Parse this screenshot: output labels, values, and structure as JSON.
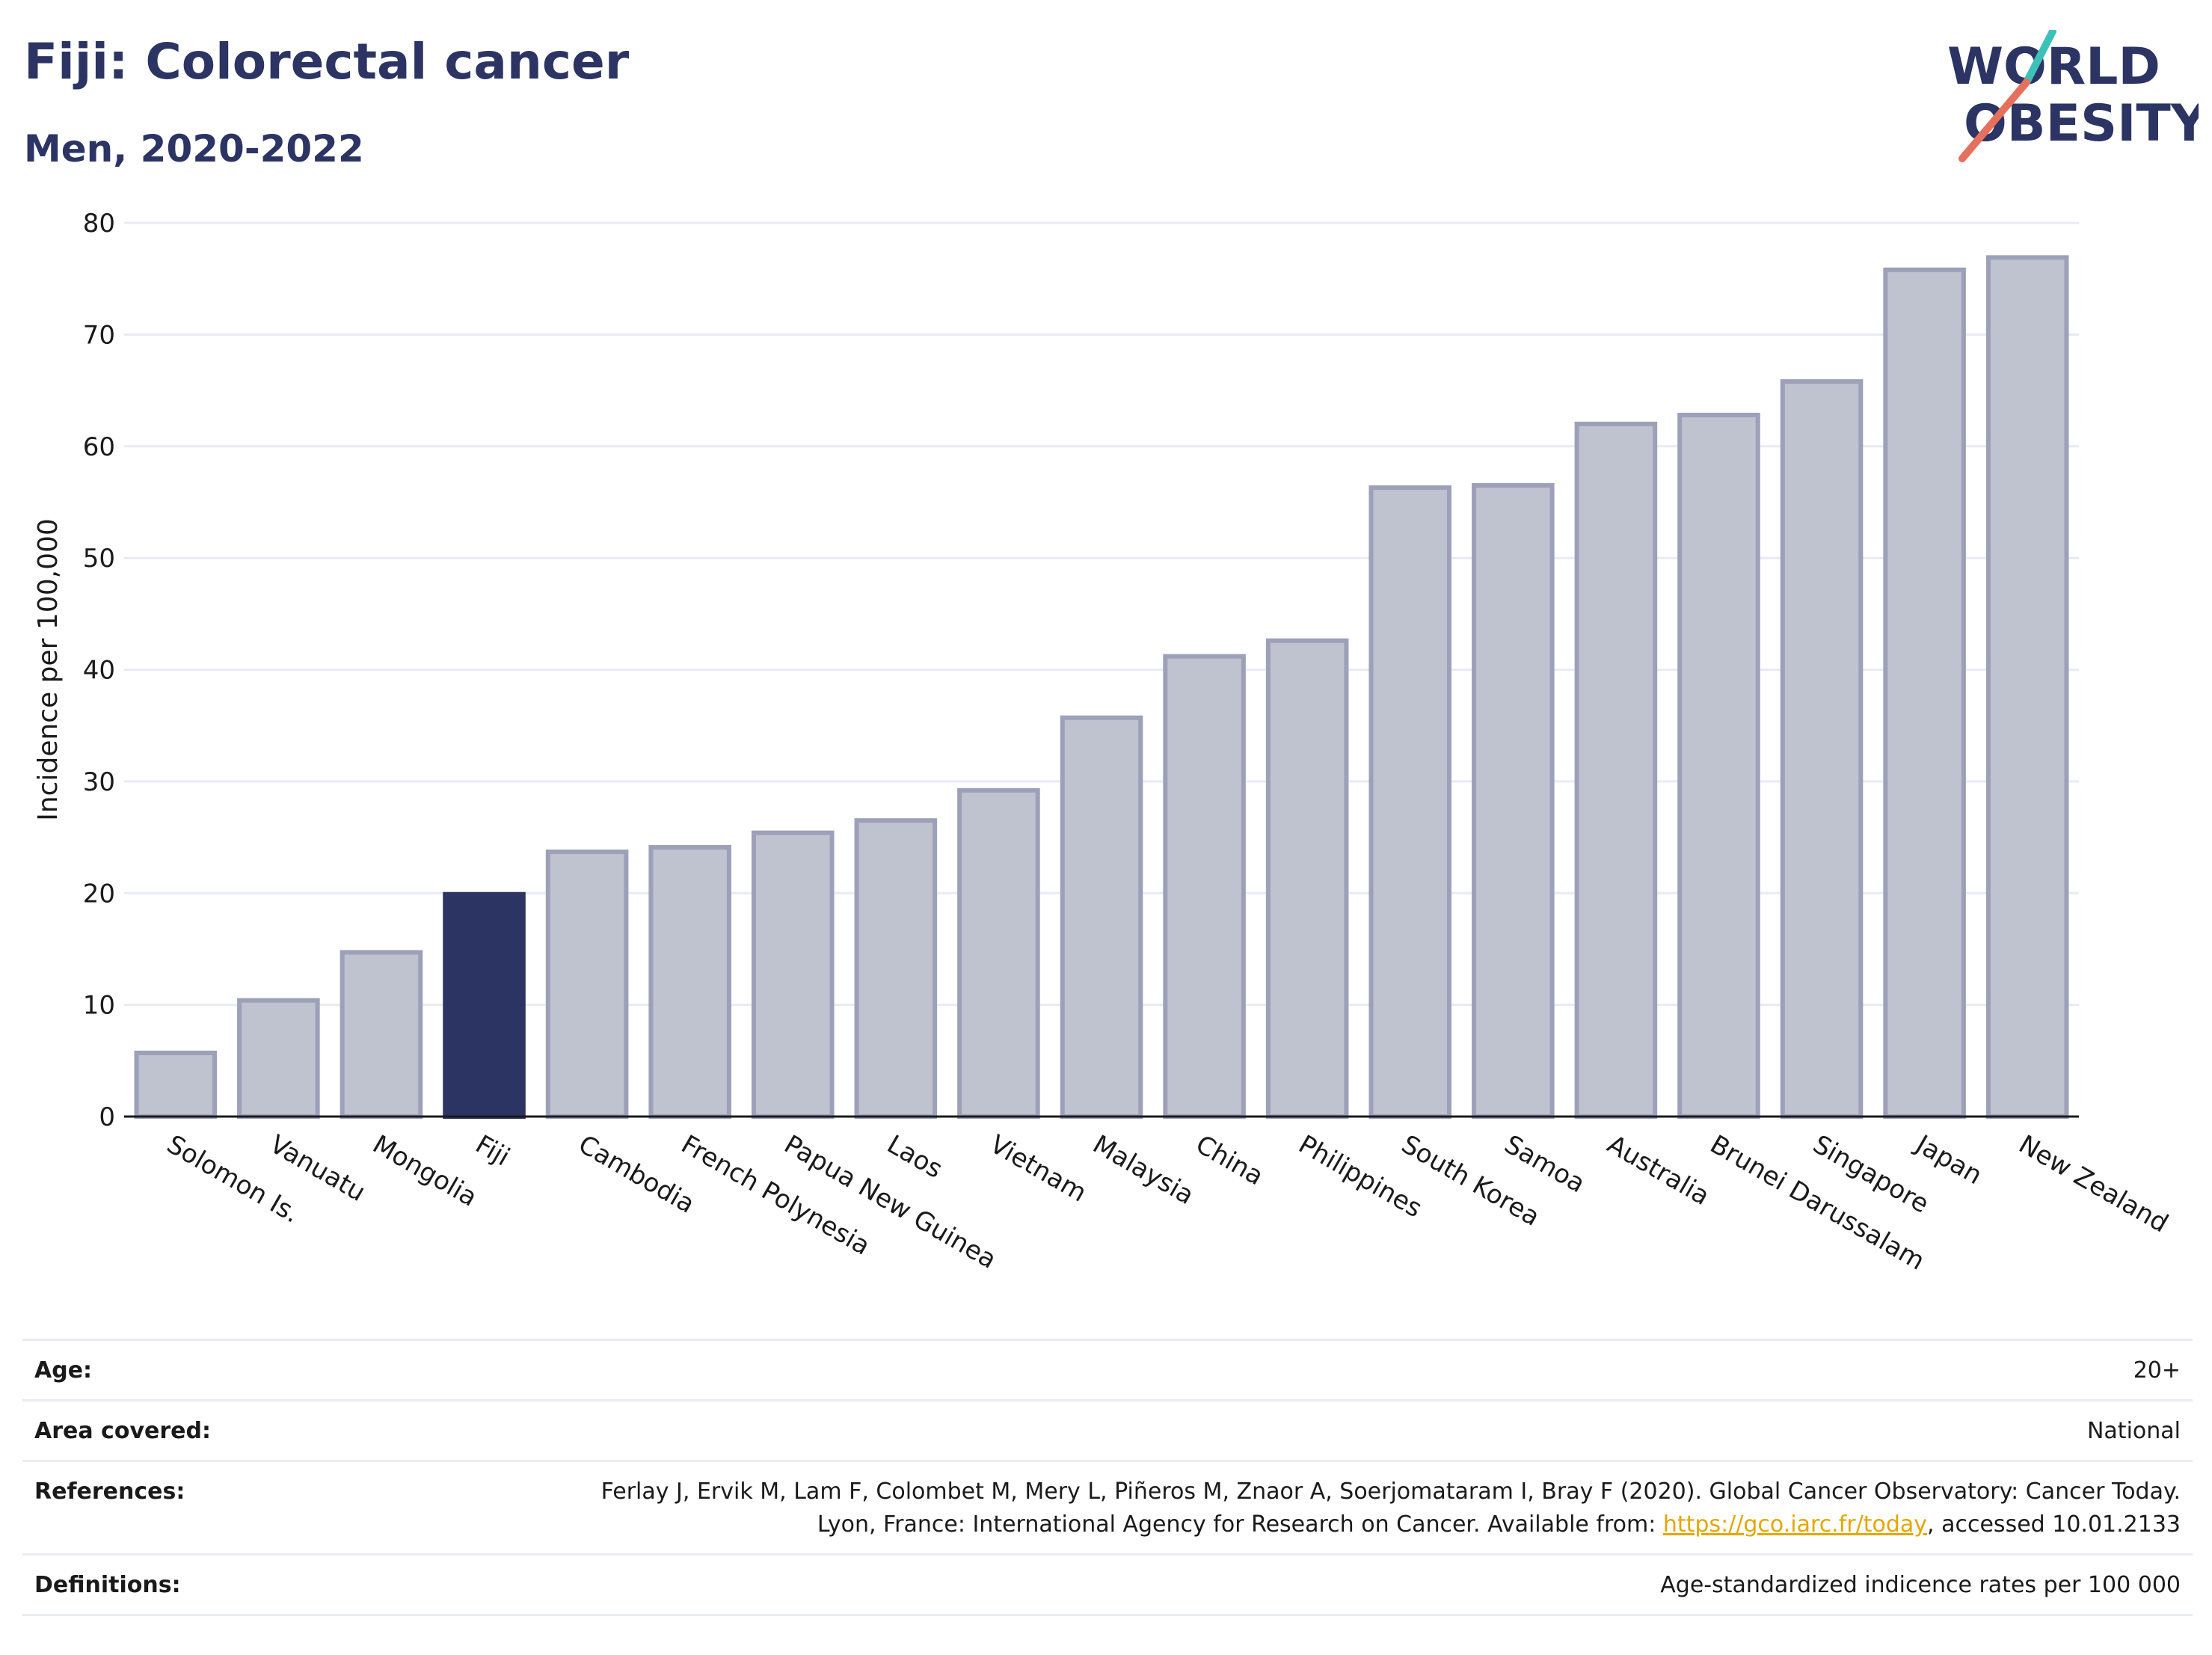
{
  "header": {
    "title": "Fiji: Colorectal cancer",
    "subtitle": "Men, 2020-2022"
  },
  "logo": {
    "line1": "WORLD",
    "line2": "OBESITY",
    "colors": {
      "text": "#2b3463",
      "slash_red": "#e5705e",
      "slash_teal": "#3ec1b8"
    }
  },
  "chart_data": {
    "type": "bar",
    "title": "",
    "xlabel": "",
    "ylabel": "Incidence per 100,000",
    "ylim": [
      0,
      80
    ],
    "yticks": [
      0,
      10,
      20,
      30,
      40,
      50,
      60,
      70,
      80
    ],
    "grid": true,
    "highlight": "Fiji",
    "colors": {
      "bar": "#bfc2cf",
      "bar_border": "#9ca0b9",
      "highlight": "#2b3463"
    },
    "categories": [
      "Solomon Is.",
      "Vanuatu",
      "Mongolia",
      "Fiji",
      "Cambodia",
      "French Polynesia",
      "Papua New Guinea",
      "Laos",
      "Vietnam",
      "Malaysia",
      "China",
      "Philippines",
      "South Korea",
      "Samoa",
      "Australia",
      "Brunei Darussalam",
      "Singapore",
      "Japan",
      "New Zealand"
    ],
    "values": [
      5.7,
      10.4,
      14.7,
      19.9,
      23.7,
      24.1,
      25.4,
      26.5,
      29.2,
      35.7,
      41.2,
      42.6,
      56.3,
      56.5,
      62.0,
      62.8,
      65.8,
      75.8,
      76.9
    ]
  },
  "meta": {
    "age_label": "Age:",
    "age_value": "20+",
    "area_label": "Area covered:",
    "area_value": "National",
    "references_label": "References:",
    "references_text_1": "Ferlay J, Ervik M, Lam F, Colombet M, Mery L, Piñeros M, Znaor A, Soerjomataram I, Bray F (2020). Global Cancer Observatory: Cancer Today. Lyon, France: International Agency for Research on Cancer. Available from: ",
    "references_link": "https://gco.iarc.fr/today",
    "references_text_2": ", accessed 10.01.2133",
    "definitions_label": "Definitions:",
    "definitions_value": "Age-standardized indicence rates per 100 000"
  }
}
